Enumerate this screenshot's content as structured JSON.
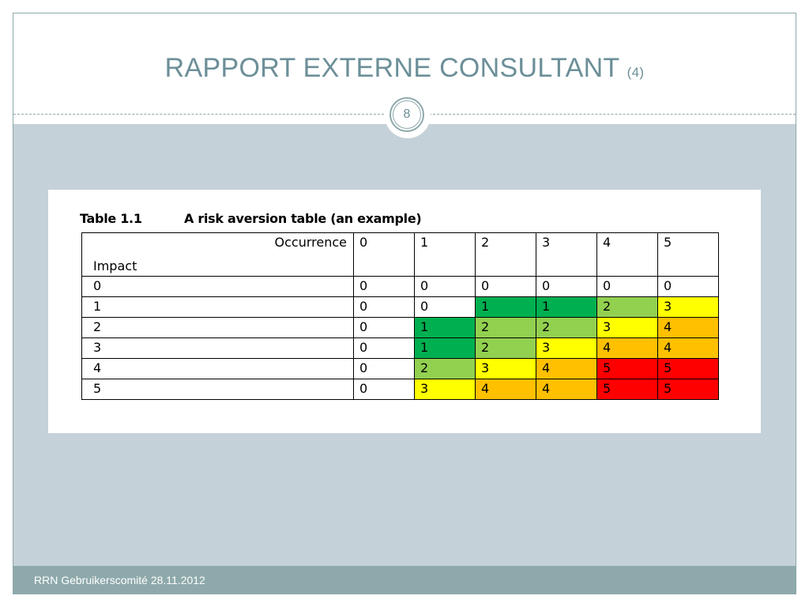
{
  "slide": {
    "title": "RAPPORT EXTERNE CONSULTANT",
    "title_suffix": "(4)",
    "number": "8",
    "footer": "RRN Gebruikerscomité 28.11.2012"
  },
  "table": {
    "caption_number": "Table 1.1",
    "caption_text": "A risk aversion table (an example)",
    "occurrence_label": "Occurrence",
    "impact_label": "Impact",
    "occurrence_values": [
      "0",
      "1",
      "2",
      "3",
      "4",
      "5"
    ],
    "rows": [
      {
        "impact": "0",
        "cells": [
          "0",
          "0",
          "0",
          "0",
          "0",
          "0"
        ]
      },
      {
        "impact": "1",
        "cells": [
          "0",
          "0",
          "1",
          "1",
          "2",
          "3"
        ]
      },
      {
        "impact": "2",
        "cells": [
          "0",
          "1",
          "2",
          "2",
          "3",
          "4"
        ]
      },
      {
        "impact": "3",
        "cells": [
          "0",
          "1",
          "2",
          "3",
          "4",
          "4"
        ]
      },
      {
        "impact": "4",
        "cells": [
          "0",
          "2",
          "3",
          "4",
          "5",
          "5"
        ]
      },
      {
        "impact": "5",
        "cells": [
          "0",
          "3",
          "4",
          "4",
          "5",
          "5"
        ]
      }
    ],
    "level_colors": {
      "1": "#00b050",
      "2": "#92d050",
      "3": "#ffff00",
      "4": "#ffc000",
      "5": "#ff0000"
    }
  },
  "colors": {
    "accent": "#6c8f98",
    "band": "#c5d1d8",
    "footer": "#8ea9ab"
  }
}
